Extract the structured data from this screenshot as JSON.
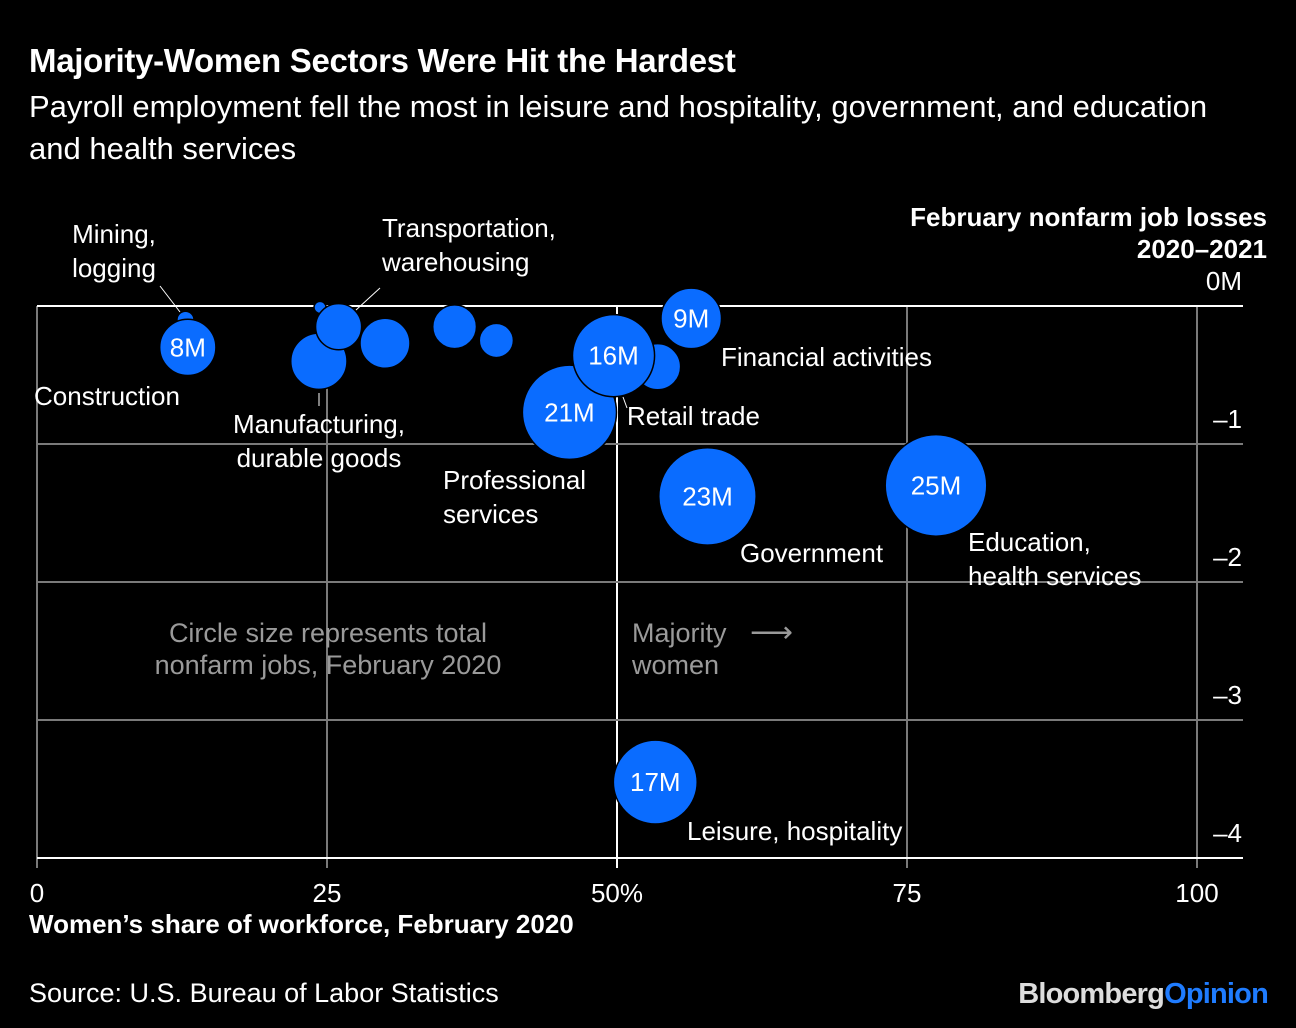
{
  "title": "Majority-Women Sectors Were Hit the Hardest",
  "subtitle": "Payroll employment fell the most in leisure and hospitality, government, and education and health services",
  "source": "Source: U.S. Bureau of Labor Statistics",
  "logo": {
    "part1": "Bloomberg",
    "part2": "Opinion"
  },
  "colors": {
    "bubble": "#0a6cff",
    "background": "#000000",
    "grid": "#7a7a7a",
    "annotation": "#9a9a9a"
  },
  "chart_data": {
    "type": "scatter",
    "subtype": "bubble",
    "xlabel": "Women’s share of workforce, February 2020",
    "ylabel_line1": "February nonfarm job losses",
    "ylabel_line2": "2020–2021",
    "xlim": [
      0,
      100
    ],
    "ylim": [
      -4,
      0
    ],
    "x_ticks": [
      "0",
      "25",
      "50%",
      "75",
      "100"
    ],
    "x_tick_values": [
      0,
      25,
      50,
      75,
      100
    ],
    "y_ticks": [
      "0M",
      "–1",
      "–2",
      "–3",
      "–4"
    ],
    "y_tick_values": [
      0,
      -1,
      -2,
      -3,
      -4
    ],
    "grid": true,
    "size_note": "Circle size represents total nonfarm jobs, February 2020",
    "majority_note": {
      "line1": "Majority",
      "line2": "women",
      "arrow": "⟶"
    },
    "points": [
      {
        "label": "Mining, logging",
        "x": 12.8,
        "y": -0.1,
        "size_millions": 0.7,
        "size_label": ""
      },
      {
        "label": "Construction",
        "x": 13.0,
        "y": -0.3,
        "size_millions": 7.6,
        "size_label": "8M"
      },
      {
        "label": "",
        "x": 24.4,
        "y": -0.01,
        "size_millions": 0.35,
        "size_label": ""
      },
      {
        "label": "Manufacturing, durable goods",
        "x": 24.3,
        "y": -0.4,
        "size_millions": 7.6,
        "size_label": ""
      },
      {
        "label": "Transportation, warehousing",
        "x": 26.0,
        "y": -0.15,
        "size_millions": 5.1,
        "size_label": ""
      },
      {
        "label": "",
        "x": 30.0,
        "y": -0.27,
        "size_millions": 6.0,
        "size_label": ""
      },
      {
        "label": "",
        "x": 36.0,
        "y": -0.15,
        "size_millions": 4.6,
        "size_label": ""
      },
      {
        "label": "",
        "x": 39.6,
        "y": -0.25,
        "size_millions": 2.8,
        "size_label": ""
      },
      {
        "label": "Professional services",
        "x": 45.9,
        "y": -0.77,
        "size_millions": 21.3,
        "size_label": "21M"
      },
      {
        "label": "",
        "x": 53.5,
        "y": -0.44,
        "size_millions": 5.1,
        "size_label": ""
      },
      {
        "label": "Retail trade",
        "x": 49.7,
        "y": -0.36,
        "size_millions": 16.2,
        "size_label": "16M"
      },
      {
        "label": "Financial activities",
        "x": 56.4,
        "y": -0.09,
        "size_millions": 8.8,
        "size_label": "9M"
      },
      {
        "label": "Government",
        "x": 57.8,
        "y": -1.38,
        "size_millions": 22.8,
        "size_label": "23M"
      },
      {
        "label": "Education, health services",
        "x": 77.5,
        "y": -1.3,
        "size_millions": 24.8,
        "size_label": "25M"
      },
      {
        "label": "Leisure, hospitality",
        "x": 53.3,
        "y": -3.45,
        "size_millions": 16.9,
        "size_label": "17M"
      }
    ]
  }
}
